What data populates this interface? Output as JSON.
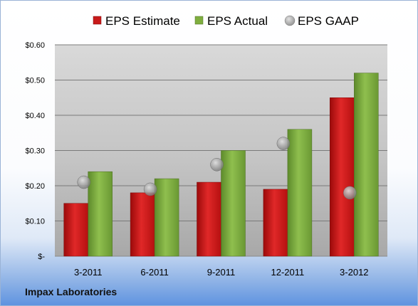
{
  "chart_data": {
    "type": "bar",
    "title": "",
    "xlabel": "",
    "ylabel": "",
    "categories": [
      "3-2011",
      "6-2011",
      "9-2011",
      "12-2011",
      "3-2012"
    ],
    "series": [
      {
        "name": "EPS Estimate",
        "kind": "bar",
        "color": "#cc1111",
        "values": [
          0.15,
          0.18,
          0.21,
          0.19,
          0.45
        ]
      },
      {
        "name": "EPS Actual",
        "kind": "bar",
        "color": "#76a33a",
        "values": [
          0.24,
          0.22,
          0.3,
          0.36,
          0.52
        ]
      },
      {
        "name": "EPS GAAP",
        "kind": "marker",
        "color": "#9a9a9a",
        "values": [
          0.21,
          0.19,
          0.26,
          0.32,
          0.18
        ]
      }
    ],
    "ylim": [
      0,
      0.6
    ],
    "yticks": [
      0,
      0.1,
      0.2,
      0.3,
      0.4,
      0.5,
      0.6
    ],
    "ytick_labels": [
      "$-",
      "$0.10",
      "$0.20",
      "$0.30",
      "$0.40",
      "$0.50",
      "$0.60"
    ],
    "grid": true,
    "legend_position": "top"
  },
  "company": "Impax Laboratories"
}
